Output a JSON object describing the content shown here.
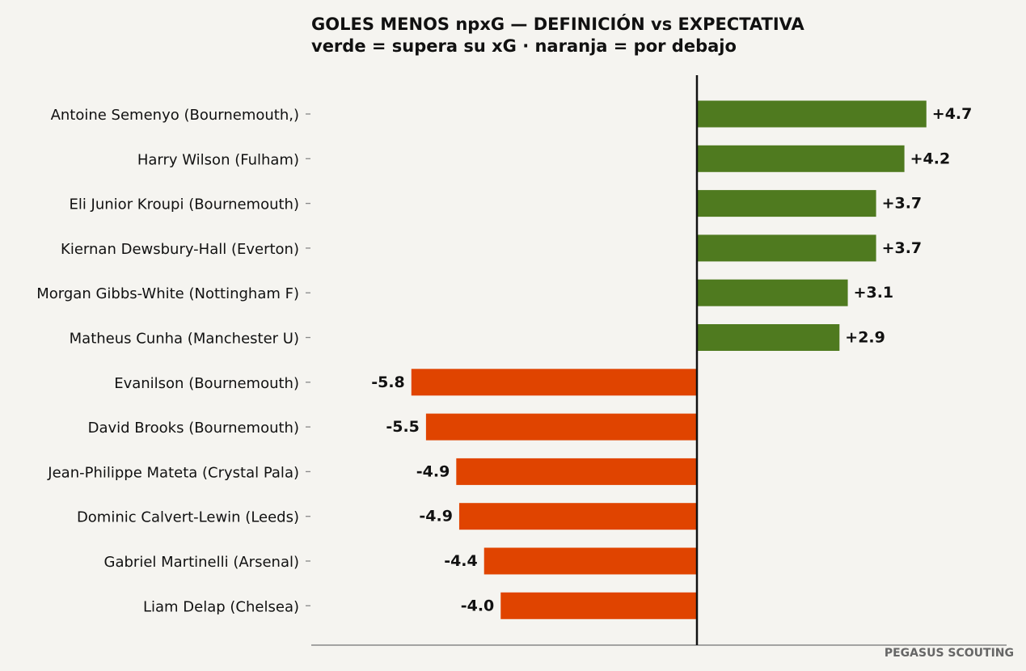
{
  "chart_data": {
    "type": "bar",
    "orientation": "horizontal",
    "title": "GOLES MENOS npxG — DEFINICIÓN vs EXPECTATIVA",
    "subtitle": "verde = supera su xG · naranja = por debajo",
    "categories": [
      "Antoine Semenyo (Bournemouth,)",
      "Harry Wilson (Fulham)",
      "Eli Junior Kroupi (Bournemouth)",
      "Kiernan Dewsbury-Hall (Everton)",
      "Morgan Gibbs-White (Nottingham F)",
      "Matheus Cunha (Manchester U)",
      "Evanilson (Bournemouth)",
      "David Brooks (Bournemouth)",
      "Jean-Philippe Mateta (Crystal Pala)",
      "Dominic Calvert-Lewin (Leeds)",
      "Gabriel Martinelli (Arsenal)",
      "Liam Delap (Chelsea)"
    ],
    "values": [
      4.7,
      4.25,
      3.67,
      3.67,
      3.09,
      2.92,
      -5.85,
      -5.55,
      -4.93,
      -4.87,
      -4.36,
      -4.02
    ],
    "value_labels": [
      "+4.7",
      "+4.2",
      "+3.7",
      "+3.7",
      "+3.1",
      "+2.9",
      "-5.8",
      "-5.5",
      "-4.9",
      "-4.9",
      "-4.4",
      "-4.0"
    ],
    "xlim": [
      -7.9,
      6.4
    ],
    "positive_color": "#4f7a1f",
    "negative_color": "#e04400",
    "zero_line_color": "#111111",
    "grid": false,
    "legend": "none",
    "xlabel": "",
    "ylabel": ""
  },
  "credit": "PEGASUS SCOUTING"
}
